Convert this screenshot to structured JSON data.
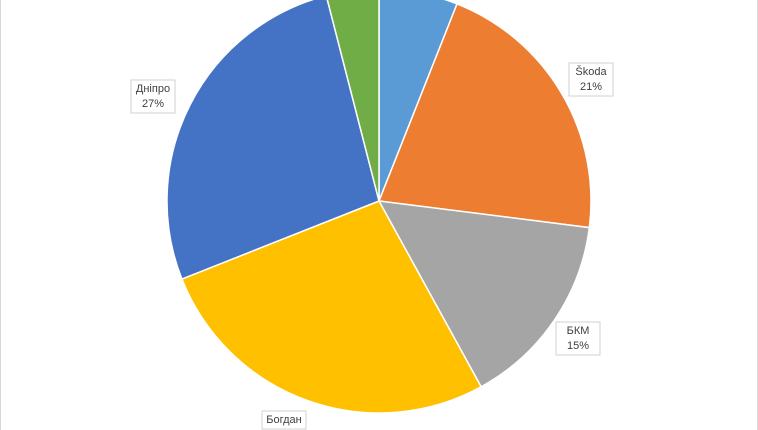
{
  "chart_data": {
    "type": "pie",
    "categories": [
      null,
      "Škoda",
      "БКМ",
      "Богдан",
      "Дніпро",
      null
    ],
    "values": [
      6,
      21,
      15,
      27,
      27,
      4
    ],
    "value_labels": [
      null,
      "21%",
      "15%",
      null,
      "27%",
      null
    ],
    "colors": [
      "#5b9bd5",
      "#ed7d31",
      "#a5a5a5",
      "#ffc000",
      "#4472c4",
      "#70ad47"
    ]
  }
}
